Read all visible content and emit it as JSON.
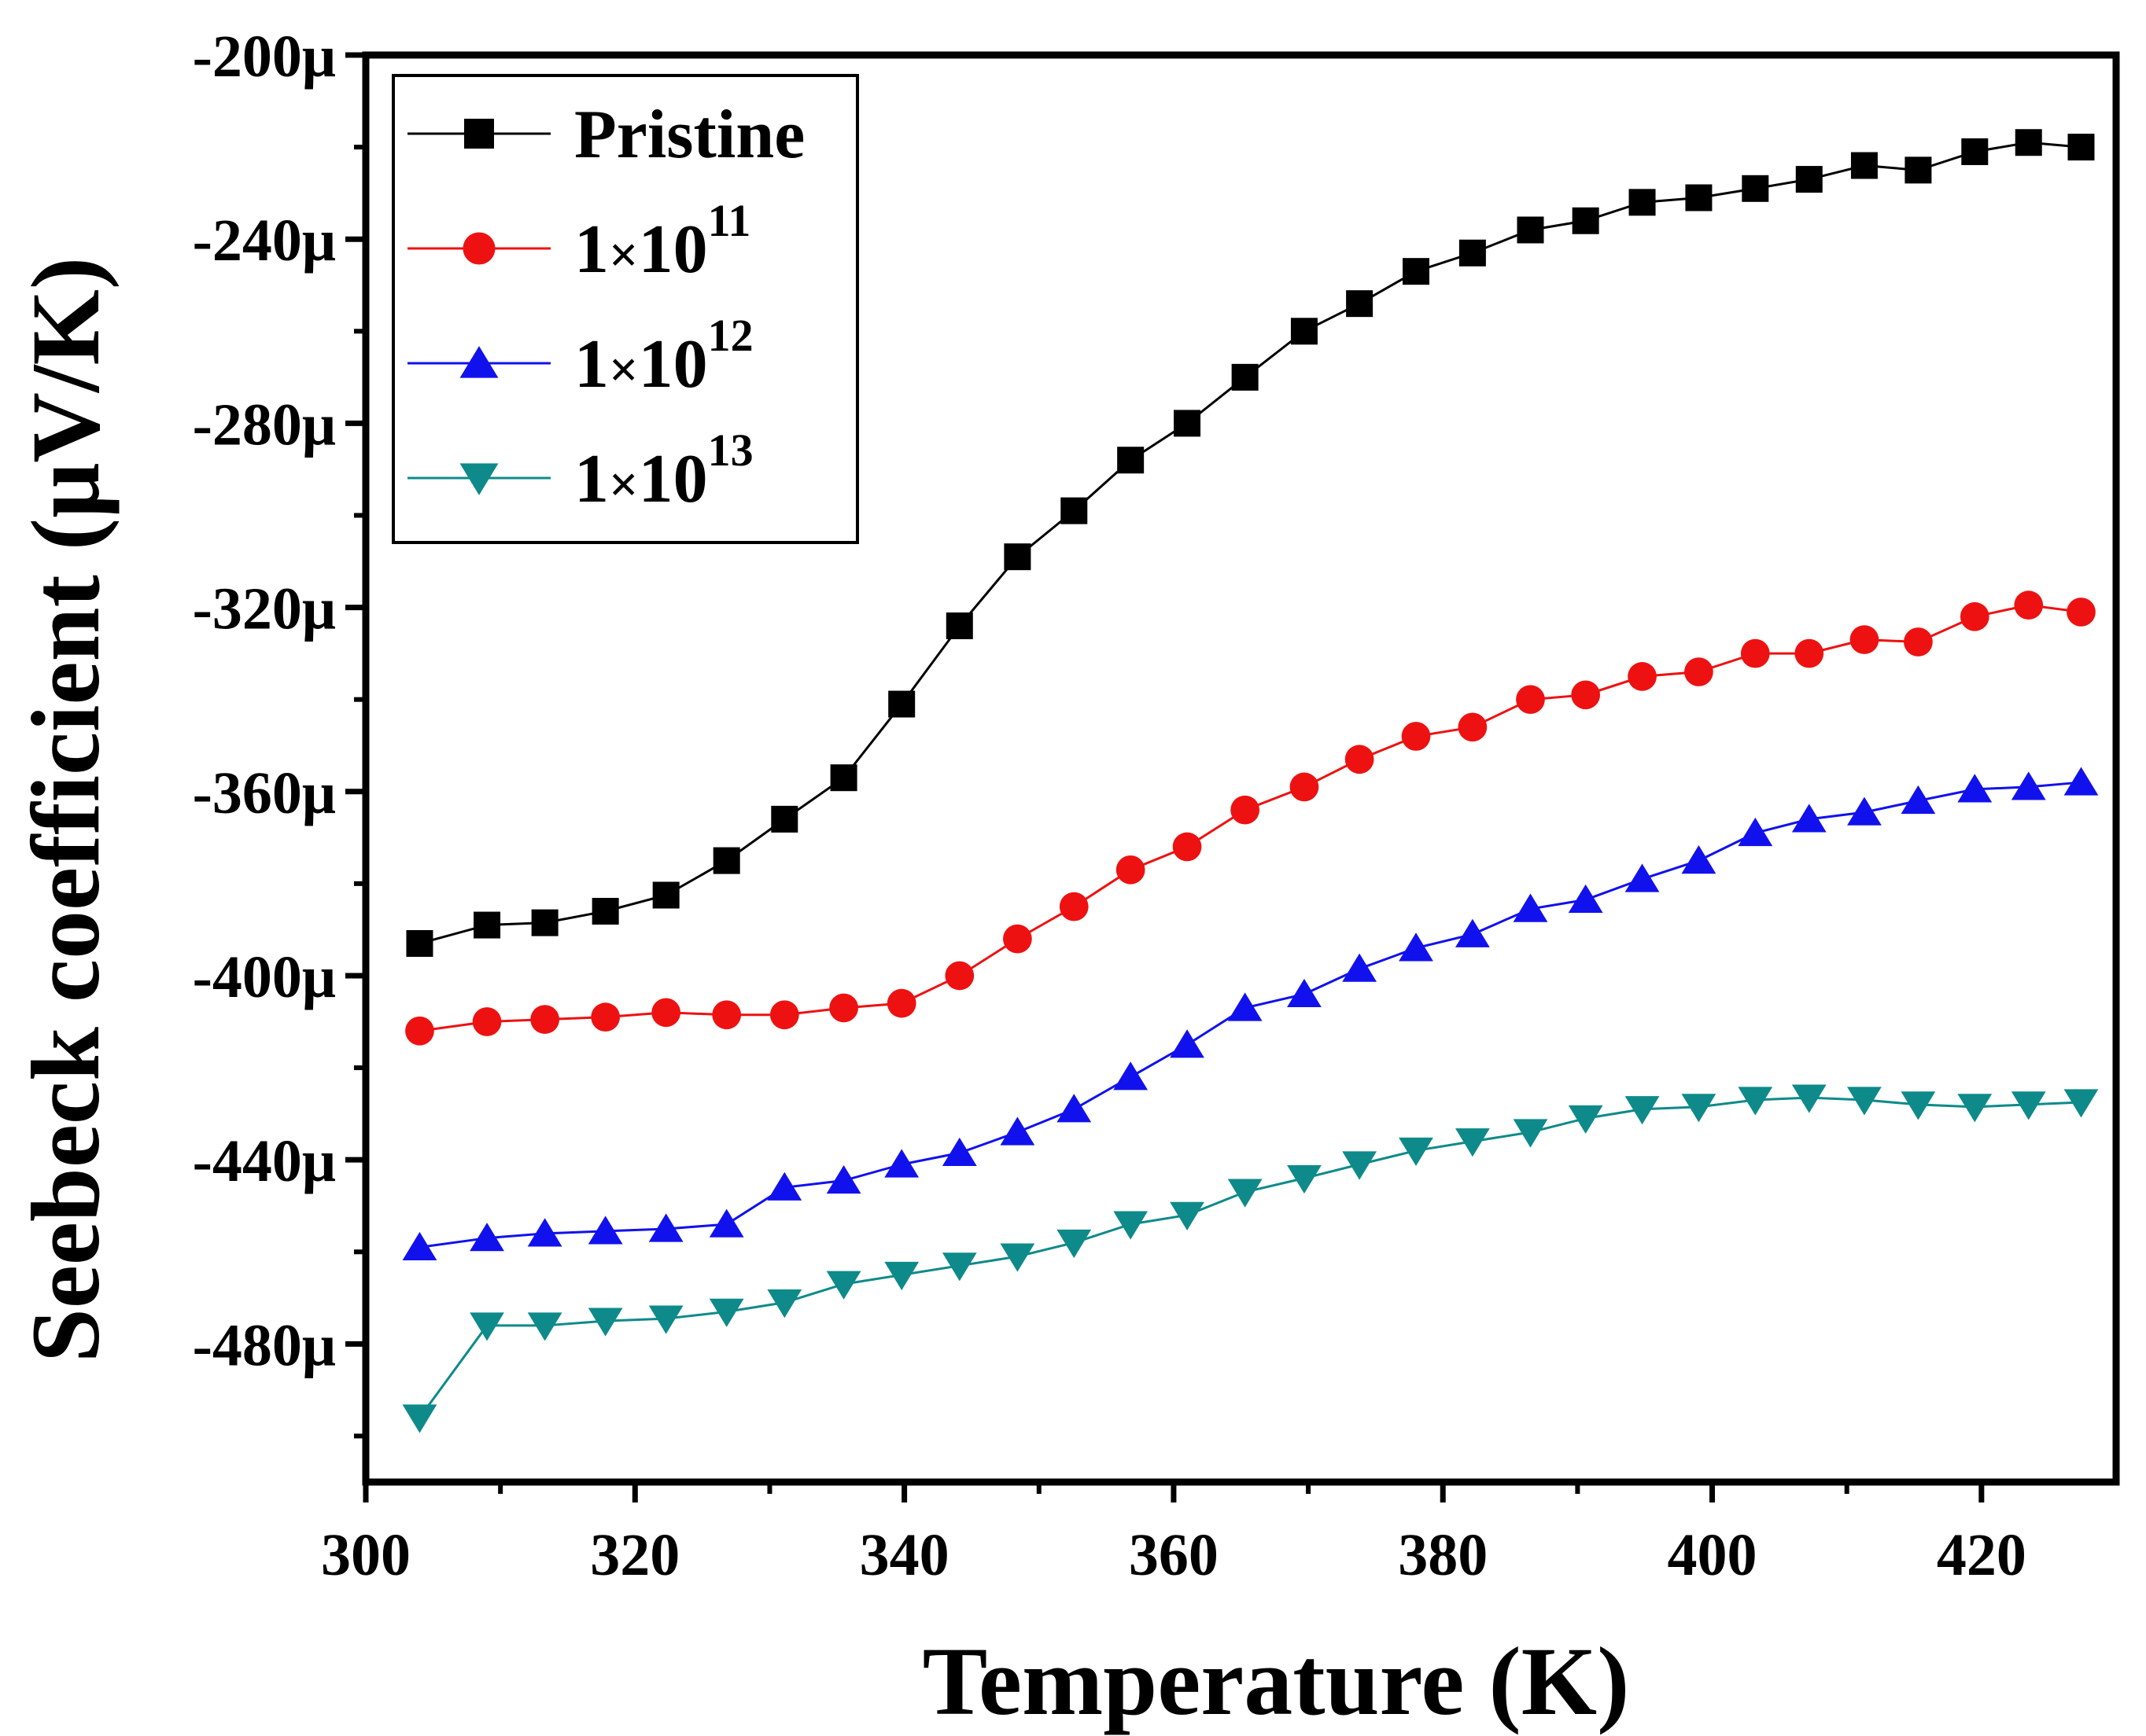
{
  "chart_data": {
    "type": "line",
    "title": "",
    "xlabel": "Temperature (K)",
    "ylabel": "Seebeck coefficient (μV/K)",
    "xlim": [
      300,
      430
    ],
    "ylim": [
      -510,
      -200
    ],
    "xticks": [
      300,
      320,
      340,
      360,
      380,
      400,
      420
    ],
    "xtick_labels": [
      "300",
      "320",
      "340",
      "360",
      "380",
      "400",
      "420"
    ],
    "yticks": [
      -200,
      -240,
      -280,
      -320,
      -360,
      -400,
      -440,
      -480
    ],
    "ytick_labels": [
      "-200μ",
      "-240μ",
      "-280μ",
      "-320μ",
      "-360μ",
      "-400μ",
      "-440μ",
      "-480μ"
    ],
    "legend_position": "top-left",
    "x": [
      304,
      309,
      313.3,
      317.8,
      322.3,
      326.8,
      331.1,
      335.5,
      339.8,
      344.1,
      348.4,
      352.6,
      356.8,
      361,
      365.3,
      369.7,
      373.8,
      378,
      382.2,
      386.5,
      390.6,
      394.8,
      399,
      403.2,
      407.2,
      411.3,
      415.3,
      419.5,
      423.5,
      427.4
    ],
    "series": [
      {
        "name": "Pristine",
        "legend_base": "Pristine",
        "legend_exp": "",
        "marker": "square",
        "color": "#000000",
        "values": [
          -393,
          -389,
          -388.5,
          -386,
          -382.5,
          -375,
          -366,
          -357,
          -341,
          -324,
          -309,
          -299,
          -288,
          -280,
          -270,
          -260,
          -254,
          -247,
          -243,
          -238,
          -236,
          -232,
          -231,
          -229,
          -227,
          -224,
          -225,
          -221,
          -219,
          -220
        ]
      },
      {
        "name": "1×10^11",
        "legend_base": "1×10",
        "legend_exp": "11",
        "marker": "circle",
        "color": "#ee1111",
        "values": [
          -412,
          -410,
          -409.5,
          -409,
          -408,
          -408.5,
          -408.5,
          -407,
          -406,
          -400,
          -392,
          -385,
          -377,
          -372,
          -364,
          -359,
          -353,
          -348,
          -346,
          -340,
          -339,
          -335,
          -334,
          -330,
          -330,
          -327,
          -327.5,
          -322,
          -319.5,
          -321
        ]
      },
      {
        "name": "1×10^12",
        "legend_base": "1×10",
        "legend_exp": "12",
        "marker": "triangle-up",
        "color": "#1111ee",
        "values": [
          -459,
          -457,
          -456,
          -455.5,
          -455,
          -454,
          -446,
          -444.5,
          -441,
          -438.5,
          -434,
          -429,
          -422,
          -415,
          -407,
          -404,
          -398.5,
          -394,
          -391,
          -385.5,
          -383.5,
          -379,
          -375,
          -369,
          -366,
          -364.5,
          -362,
          -359.5,
          -359,
          -358
        ]
      },
      {
        "name": "1×10^13",
        "legend_base": "1×10",
        "legend_exp": "13",
        "marker": "triangle-down",
        "color": "#0e8a8a",
        "values": [
          -496,
          -476,
          -476,
          -475,
          -474.5,
          -473,
          -471,
          -467,
          -465,
          -463,
          -461,
          -458,
          -454,
          -452,
          -447,
          -444,
          -441,
          -438,
          -436,
          -434,
          -431,
          -429,
          -428.5,
          -427,
          -426.5,
          -427,
          -428,
          -428.5,
          -428,
          -427.5
        ]
      }
    ]
  }
}
